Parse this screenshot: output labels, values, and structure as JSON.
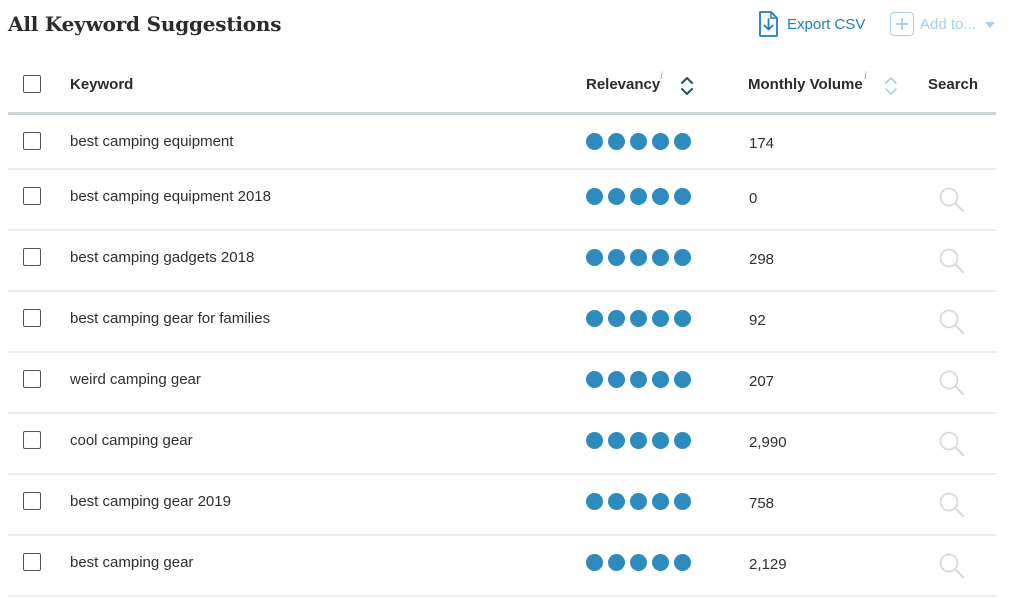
{
  "page": {
    "title": "All Keyword Suggestions"
  },
  "toolbar": {
    "export_label": "Export CSV",
    "add_to_label": "Add to..."
  },
  "table": {
    "headers": {
      "keyword": "Keyword",
      "relevancy": "Relevancy",
      "monthly_volume": "Monthly Volume",
      "search": "Search",
      "info_glyph": "i"
    },
    "rows": [
      {
        "keyword": "best camping equipment",
        "relevancy": 5,
        "volume": "174",
        "search_icon": false
      },
      {
        "keyword": "best camping equipment 2018",
        "relevancy": 5,
        "volume": "0",
        "search_icon": true
      },
      {
        "keyword": "best camping gadgets 2018",
        "relevancy": 5,
        "volume": "298",
        "search_icon": true
      },
      {
        "keyword": "best camping gear for families",
        "relevancy": 5,
        "volume": "92",
        "search_icon": true
      },
      {
        "keyword": "weird camping gear",
        "relevancy": 5,
        "volume": "207",
        "search_icon": true
      },
      {
        "keyword": "cool camping gear",
        "relevancy": 5,
        "volume": "2,990",
        "search_icon": true
      },
      {
        "keyword": "best camping gear 2019",
        "relevancy": 5,
        "volume": "758",
        "search_icon": true
      },
      {
        "keyword": "best camping gear",
        "relevancy": 5,
        "volume": "2,129",
        "search_icon": true
      }
    ]
  },
  "colors": {
    "accent": "#1e7fbf",
    "relevancy_dot": "#2e8bbd",
    "disabled_accent": "#a8cfe8",
    "search_icon": "#d6dbde"
  },
  "icons": {
    "export": "export-csv-icon",
    "add": "plus-icon",
    "dropdown": "caret-down-icon",
    "sort": "sort-icon",
    "search": "search-icon",
    "checkbox": "checkbox"
  }
}
